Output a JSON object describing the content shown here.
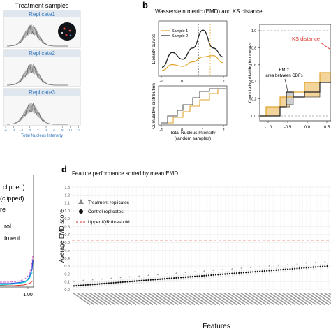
{
  "panel_a": {
    "title": "Treatment samples",
    "replicates": [
      "Replicate1",
      "Replicate2",
      "Replicate3"
    ],
    "xlabel": "Total Nucleus Intensity",
    "xticks": [
      "-6",
      "-4",
      "-2",
      "0",
      "2",
      "4",
      "6",
      "8",
      "10",
      "12"
    ]
  },
  "panel_b": {
    "letter": "b",
    "title": "Wasserstein metric (EMD) and KS distance",
    "legend": [
      "Sample 1",
      "Sample 2"
    ],
    "density_ylabel": "Density curves",
    "cdf_ylabel": "Cumulative distribution",
    "xlabel_line1": "Total Nucleus Intensity",
    "xlabel_line2": "(random samples)",
    "xticks": [
      "-1",
      "0",
      "1",
      "2"
    ],
    "right_ylabel": "Cumulative distribution curves",
    "ks_label": "KS distance",
    "emd_label_line1": "EMD:",
    "emd_label_line2": "area between CDFs",
    "right_xticks": [
      "-1.0",
      "-0.5",
      "0.0",
      "0.5"
    ],
    "right_yticks": [
      "0.0",
      "0.2",
      "0.4",
      "0.6",
      "0.8",
      "1.0"
    ]
  },
  "panel_c": {
    "legend_fragments": [
      "clipped)",
      "(clipped)",
      "re",
      "rol",
      "tment"
    ],
    "xtick": "1.00"
  },
  "panel_d": {
    "letter": "d",
    "title": "Feature performance sorted by mean EMD",
    "ylabel": "Average EMD score",
    "xlabel": "Features",
    "yticks": [
      "0.0",
      "0.1",
      "0.2",
      "0.3",
      "0.4",
      "0.5",
      "0.6",
      "0.7",
      "0.8",
      "0.9",
      "1.0",
      "1.1",
      "1.2",
      "1.3"
    ],
    "legend_treatment": "Treatment replicates",
    "legend_control": "Control replicates",
    "legend_threshold": "Upper IQR threshold"
  },
  "chart_data": [
    {
      "type": "line",
      "title": "Wasserstein metric (EMD) and KS distance",
      "xlabel": "Total Nucleus Intensity",
      "ylabel": "Density curves",
      "series": [
        {
          "name": "Sample 1",
          "x": [
            -1,
            -0.5,
            0,
            0.5,
            1,
            1.5,
            2
          ],
          "y": [
            0.05,
            0.18,
            0.14,
            0.24,
            0.35,
            0.38,
            0.22
          ]
        },
        {
          "name": "Sample 2",
          "x": [
            -1,
            -0.5,
            0,
            0.5,
            1,
            1.5,
            2
          ],
          "y": [
            0.12,
            0.45,
            0.3,
            0.55,
            0.95,
            0.55,
            0.35
          ]
        }
      ],
      "xlim": [
        -1,
        2
      ]
    },
    {
      "type": "line",
      "title": "Feature performance sorted by mean EMD",
      "xlabel": "Features",
      "ylabel": "Average EMD score",
      "ylim": [
        0,
        1.3
      ],
      "series": [
        {
          "name": "Control replicates",
          "y_start": 0.05,
          "y_end": 0.3
        },
        {
          "name": "Upper IQR threshold",
          "value": 0.63
        }
      ]
    }
  ],
  "colors": {
    "sample1": "#e0a42a",
    "sample2": "#222222",
    "link_blue": "#3a7bbf",
    "threshold": "#d9342b",
    "emd_fill": "#f3d49a"
  }
}
